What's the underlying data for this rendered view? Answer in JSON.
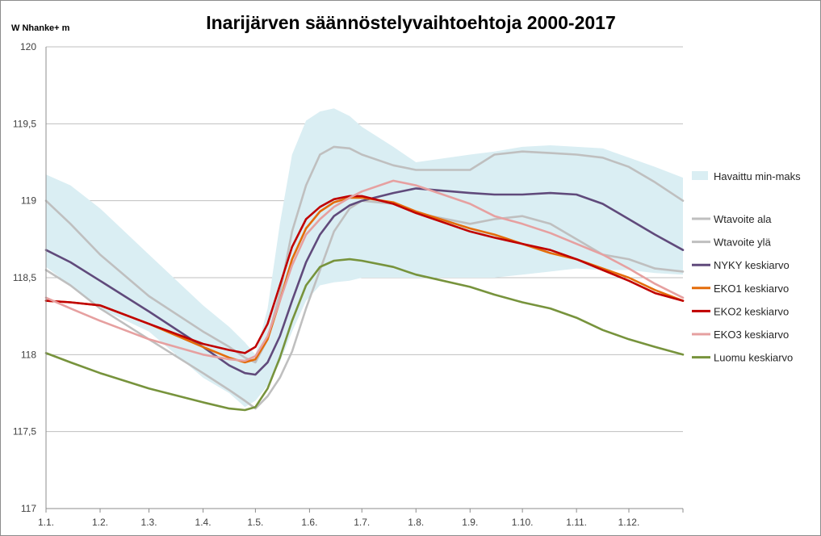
{
  "chart_data": {
    "type": "line",
    "title": "Inarijärven säännöstelyvaihtoehtoja 2000-2017",
    "ylabel": "W Nhanke+ m",
    "xlabel": "",
    "ylim": [
      117,
      120
    ],
    "y_ticks": [
      "117",
      "117,5",
      "118",
      "118,5",
      "119",
      "119,5",
      "120"
    ],
    "y_tick_values": [
      117,
      117.5,
      118,
      118.5,
      119,
      119.5,
      120
    ],
    "x_tick_labels": [
      "1.1.",
      "1.2.",
      "1.3.",
      "1.4.",
      "1.5.",
      "1.6.",
      "1.7.",
      "1.8.",
      "1.9.",
      "1.10.",
      "1.11.",
      "1.12."
    ],
    "x_tick_days": [
      1,
      32,
      60,
      91,
      121,
      152,
      182,
      213,
      244,
      274,
      305,
      335
    ],
    "x_range_days": [
      1,
      366
    ],
    "grid": "horizontal",
    "legend_position": "right",
    "band": {
      "name": "Havaittu min-maks",
      "color": "#daeef3",
      "x": [
        1,
        15,
        32,
        60,
        91,
        106,
        115,
        121,
        128,
        135,
        142,
        150,
        158,
        166,
        175,
        182,
        200,
        213,
        244,
        258,
        274,
        290,
        305,
        320,
        335,
        350,
        366
      ],
      "lower": [
        118.57,
        118.45,
        118.3,
        118.15,
        117.85,
        117.75,
        117.66,
        117.7,
        117.8,
        117.95,
        118.15,
        118.35,
        118.45,
        118.47,
        118.48,
        118.5,
        118.5,
        118.5,
        118.5,
        118.5,
        118.52,
        118.54,
        118.56,
        118.55,
        118.55,
        118.53,
        118.52
      ],
      "upper": [
        119.17,
        119.1,
        118.95,
        118.65,
        118.32,
        118.18,
        118.08,
        118.0,
        118.3,
        118.85,
        119.3,
        119.52,
        119.58,
        119.6,
        119.55,
        119.48,
        119.35,
        119.25,
        119.3,
        119.32,
        119.35,
        119.36,
        119.35,
        119.34,
        119.28,
        119.22,
        119.15
      ]
    },
    "series": [
      {
        "name": "Wtavoite ala",
        "color": "#bfbfbf",
        "x": [
          1,
          15,
          32,
          60,
          91,
          106,
          115,
          121,
          128,
          135,
          142,
          150,
          158,
          166,
          175,
          182,
          200,
          213,
          244,
          258,
          274,
          290,
          305,
          320,
          335,
          350,
          366
        ],
        "values": [
          118.55,
          118.45,
          118.3,
          118.1,
          117.88,
          117.77,
          117.7,
          117.65,
          117.73,
          117.85,
          118.02,
          118.3,
          118.55,
          118.8,
          118.95,
          119.0,
          118.98,
          118.92,
          118.85,
          118.88,
          118.9,
          118.85,
          118.75,
          118.65,
          118.62,
          118.56,
          118.54
        ]
      },
      {
        "name": "Wtavoite ylä",
        "color": "#bfbfbf",
        "x": [
          1,
          15,
          32,
          60,
          91,
          106,
          115,
          121,
          128,
          135,
          142,
          150,
          158,
          166,
          175,
          182,
          200,
          213,
          244,
          258,
          274,
          290,
          305,
          320,
          335,
          350,
          366
        ],
        "values": [
          119.0,
          118.85,
          118.65,
          118.38,
          118.15,
          118.05,
          117.98,
          117.95,
          118.1,
          118.4,
          118.8,
          119.1,
          119.3,
          119.35,
          119.34,
          119.3,
          119.23,
          119.2,
          119.2,
          119.3,
          119.32,
          119.31,
          119.3,
          119.28,
          119.22,
          119.12,
          119.0
        ]
      },
      {
        "name": "NYKY keskiarvo",
        "color": "#604a7b",
        "x": [
          1,
          15,
          32,
          60,
          91,
          106,
          115,
          121,
          128,
          135,
          142,
          150,
          158,
          166,
          175,
          182,
          200,
          213,
          244,
          258,
          274,
          290,
          305,
          320,
          335,
          350,
          366
        ],
        "values": [
          118.68,
          118.6,
          118.48,
          118.28,
          118.05,
          117.93,
          117.88,
          117.87,
          117.95,
          118.12,
          118.35,
          118.6,
          118.78,
          118.9,
          118.97,
          119.0,
          119.05,
          119.08,
          119.05,
          119.04,
          119.04,
          119.05,
          119.04,
          118.98,
          118.88,
          118.78,
          118.68
        ]
      },
      {
        "name": "EKO1 keskiarvo",
        "color": "#e46c0a",
        "x": [
          1,
          15,
          32,
          60,
          91,
          106,
          115,
          121,
          128,
          135,
          142,
          150,
          158,
          166,
          175,
          182,
          200,
          213,
          244,
          258,
          274,
          290,
          305,
          320,
          335,
          350,
          366
        ],
        "values": [
          118.35,
          118.34,
          118.32,
          118.2,
          118.05,
          117.98,
          117.95,
          117.97,
          118.1,
          118.35,
          118.62,
          118.82,
          118.93,
          118.99,
          119.02,
          119.02,
          118.99,
          118.93,
          118.82,
          118.78,
          118.72,
          118.66,
          118.62,
          118.56,
          118.5,
          118.42,
          118.35
        ]
      },
      {
        "name": "EKO2 keskiarvo",
        "color": "#c00000",
        "x": [
          1,
          15,
          32,
          60,
          91,
          106,
          115,
          121,
          128,
          135,
          142,
          150,
          158,
          166,
          175,
          182,
          200,
          213,
          244,
          258,
          274,
          290,
          305,
          320,
          335,
          350,
          366
        ],
        "values": [
          118.35,
          118.34,
          118.32,
          118.2,
          118.07,
          118.03,
          118.01,
          118.05,
          118.2,
          118.45,
          118.7,
          118.88,
          118.96,
          119.01,
          119.03,
          119.03,
          118.98,
          118.92,
          118.8,
          118.76,
          118.72,
          118.68,
          118.62,
          118.55,
          118.48,
          118.4,
          118.35
        ]
      },
      {
        "name": "EKO3 keskiarvo",
        "color": "#e6a0a0",
        "x": [
          1,
          15,
          32,
          60,
          91,
          106,
          115,
          121,
          128,
          135,
          142,
          150,
          158,
          166,
          175,
          182,
          200,
          213,
          244,
          258,
          274,
          290,
          305,
          320,
          335,
          350,
          366
        ],
        "values": [
          118.37,
          118.3,
          118.22,
          118.1,
          118.0,
          117.97,
          117.96,
          117.99,
          118.12,
          118.35,
          118.58,
          118.78,
          118.88,
          118.96,
          119.02,
          119.06,
          119.13,
          119.1,
          118.98,
          118.9,
          118.85,
          118.79,
          118.72,
          118.65,
          118.56,
          118.46,
          118.37
        ]
      },
      {
        "name": "Luomu keskiarvo",
        "color": "#77933c",
        "x": [
          1,
          15,
          32,
          60,
          91,
          106,
          115,
          121,
          128,
          135,
          142,
          150,
          158,
          166,
          175,
          182,
          200,
          213,
          244,
          258,
          274,
          290,
          305,
          320,
          335,
          350,
          366
        ],
        "values": [
          118.01,
          117.95,
          117.88,
          117.78,
          117.69,
          117.65,
          117.64,
          117.66,
          117.78,
          117.98,
          118.22,
          118.45,
          118.57,
          118.61,
          118.62,
          118.61,
          118.57,
          118.52,
          118.44,
          118.39,
          118.34,
          118.3,
          118.24,
          118.16,
          118.1,
          118.05,
          118.0
        ]
      }
    ]
  }
}
